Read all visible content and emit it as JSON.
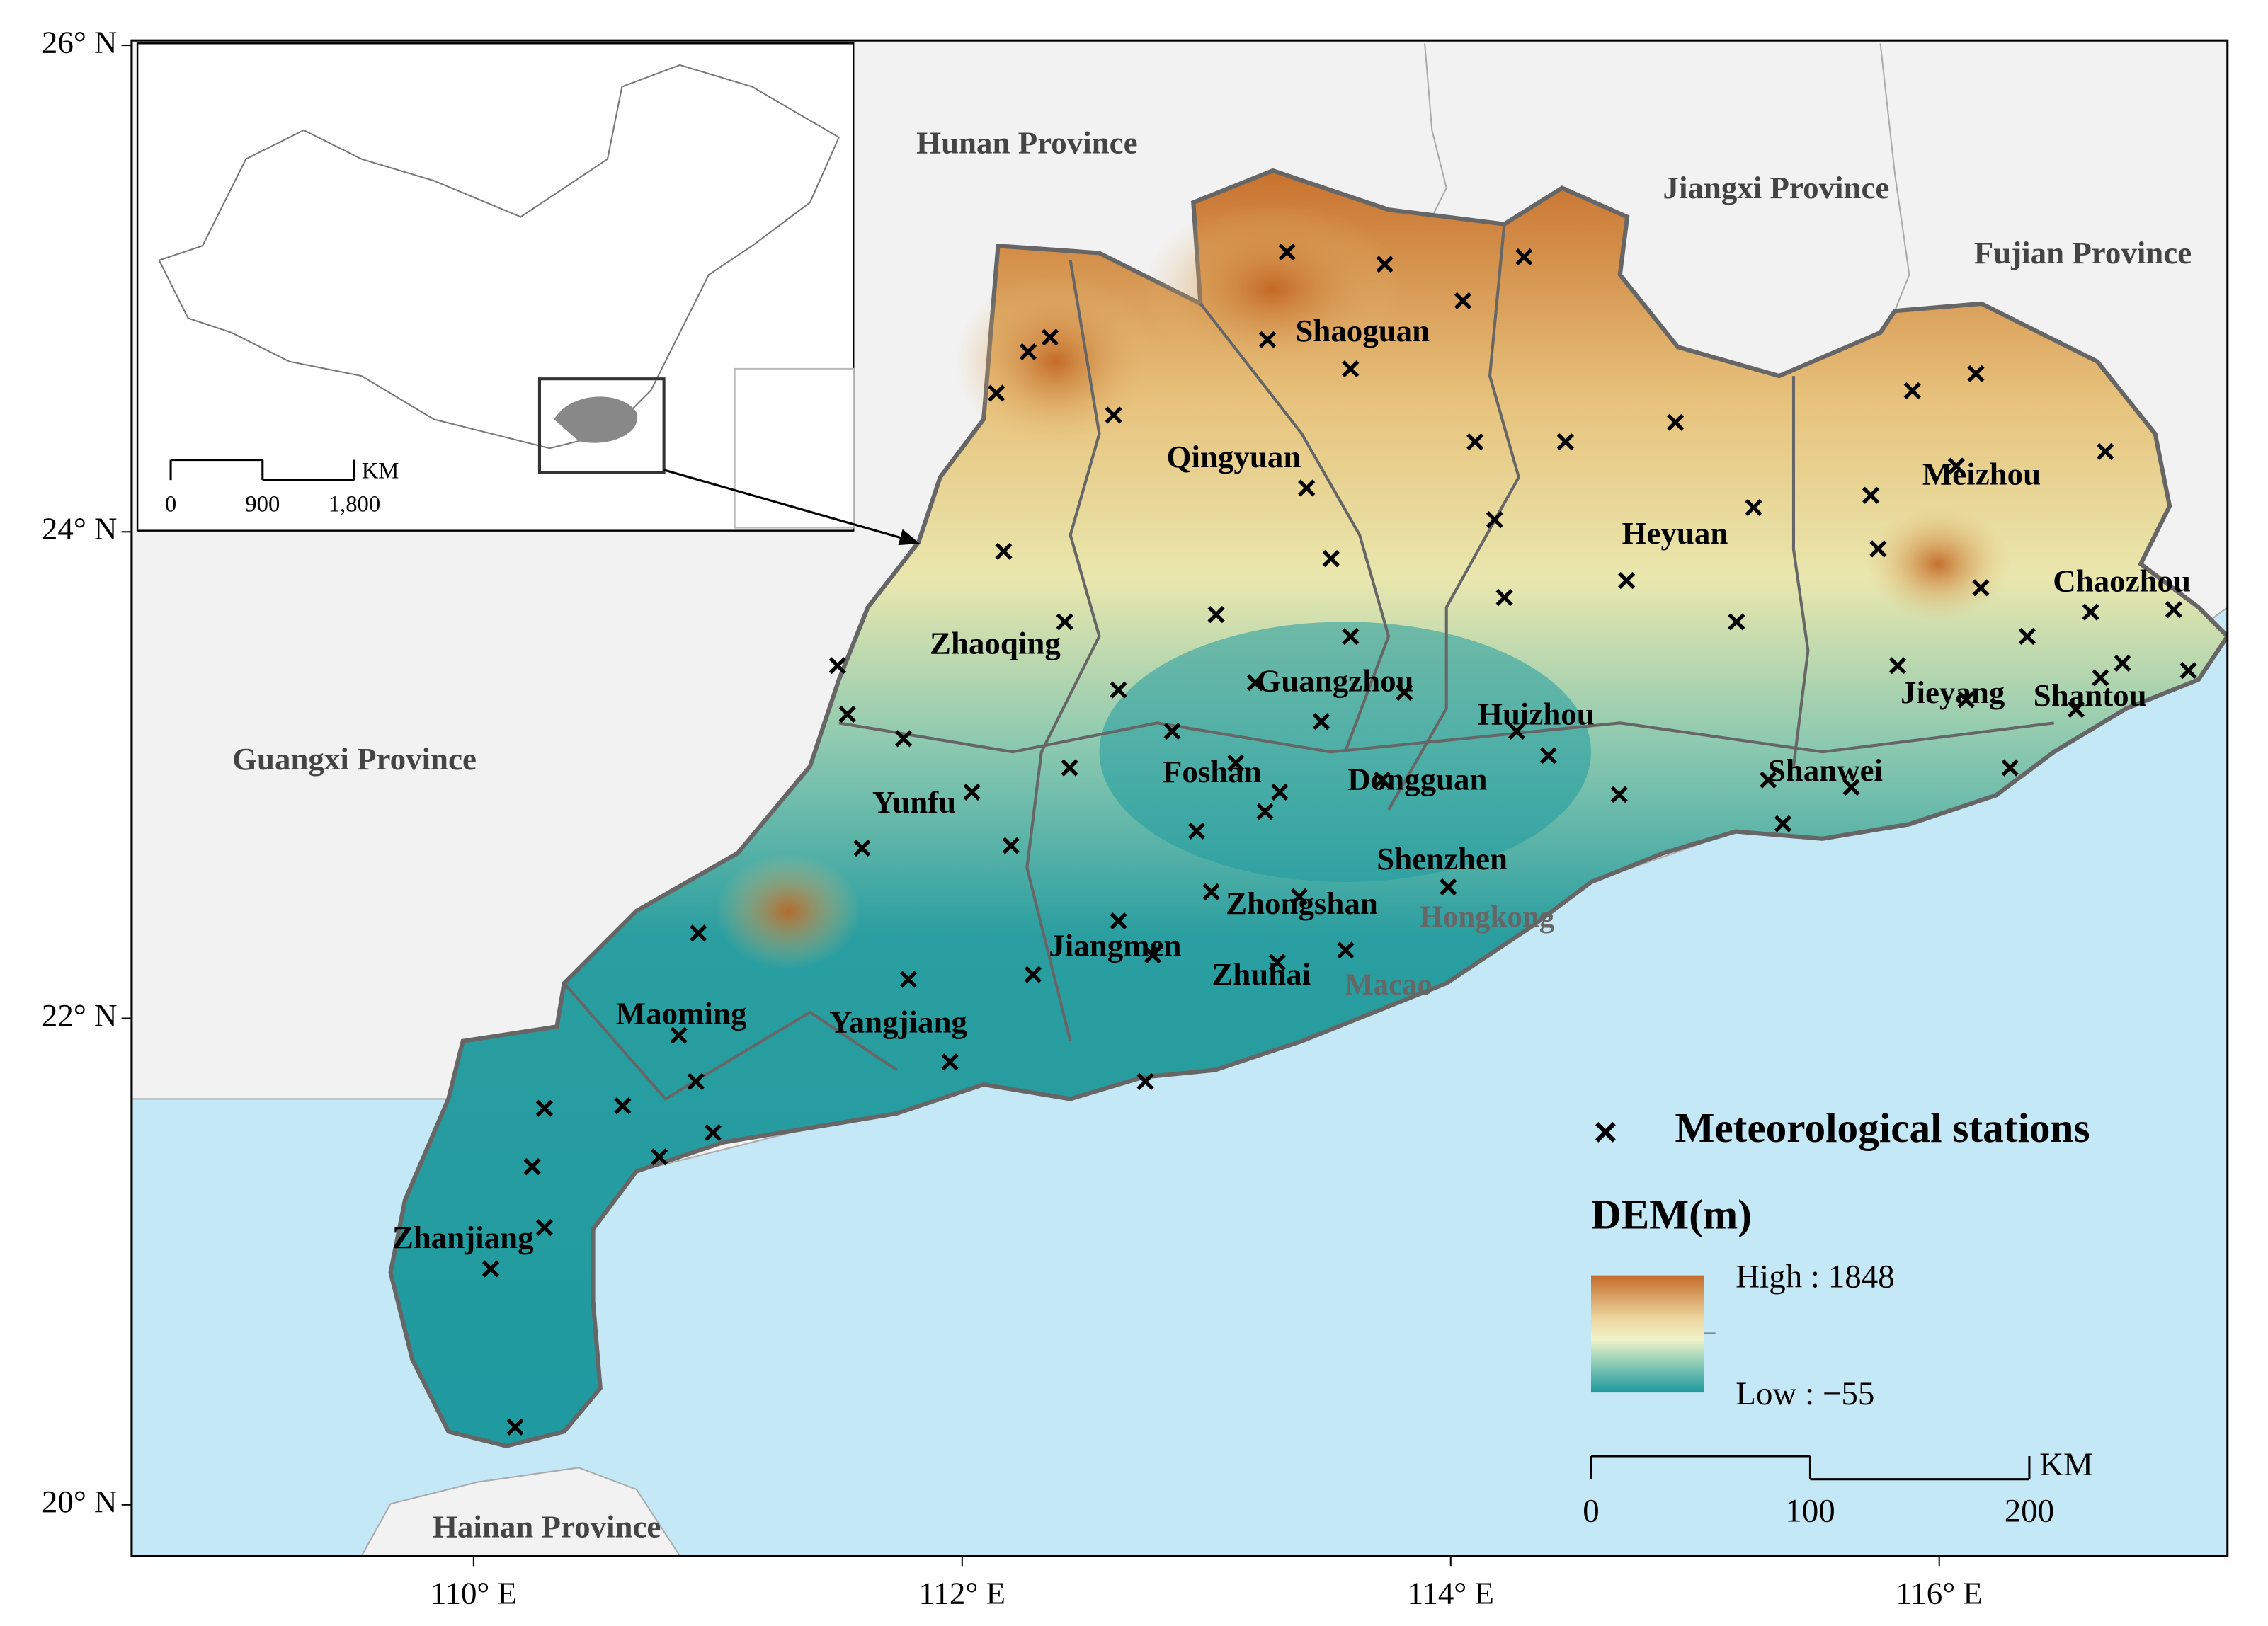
{
  "map": {
    "xlim": [
      108.6,
      117.18
    ],
    "ylim": [
      19.79,
      26.02
    ],
    "xticks": [
      {
        "value": 110,
        "label": "110° E"
      },
      {
        "value": 112,
        "label": "112° E"
      },
      {
        "value": 114,
        "label": "114° E"
      },
      {
        "value": 116,
        "label": "116° E"
      }
    ],
    "yticks": [
      {
        "value": 20,
        "label": "20° N"
      },
      {
        "value": 22,
        "label": "22° N"
      },
      {
        "value": 24,
        "label": "24° N"
      },
      {
        "value": 26,
        "label": "26° N"
      }
    ],
    "stations": {
      "name": "Meteorological stations",
      "color": "#000000",
      "lon": [
        113.33,
        113.73,
        114.3,
        114.05,
        113.25,
        112.36,
        112.27,
        112.14,
        112.62,
        113.59,
        114.1,
        114.47,
        114.92,
        115.89,
        116.15,
        116.68,
        116.07,
        113.41,
        114.18,
        115.24,
        115.72,
        115.75,
        112.17,
        113.51,
        114.72,
        114.22,
        116.17,
        116.62,
        116.96,
        113.04,
        112.42,
        113.59,
        115.17,
        111.49,
        111.53,
        112.64,
        113.2,
        113.81,
        115.83,
        116.75,
        117.02,
        116.66,
        116.11,
        116.56,
        116.36,
        111.76,
        113.47,
        112.86,
        114.27,
        112.44,
        113.12,
        114.4,
        116.29,
        112.04,
        113.3,
        113.72,
        114.69,
        115.3,
        115.64,
        113.24,
        112.96,
        115.36,
        112.2,
        111.59,
        113.02,
        113.38,
        113.99,
        110.92,
        112.64,
        113.57,
        113.29,
        111.78,
        112.29,
        112.78,
        110.84,
        110.91,
        111.95,
        112.75,
        110.29,
        110.61,
        110.98,
        110.76,
        110.24,
        110.29,
        110.07,
        110.17
      ],
      "lat": [
        25.15,
        25.1,
        25.13,
        24.95,
        24.79,
        24.8,
        24.74,
        24.57,
        24.48,
        24.67,
        24.37,
        24.37,
        24.45,
        24.58,
        24.65,
        24.33,
        24.27,
        24.18,
        24.05,
        24.1,
        24.15,
        23.93,
        23.92,
        23.89,
        23.8,
        23.73,
        23.77,
        23.67,
        23.68,
        23.66,
        23.63,
        23.57,
        23.63,
        23.45,
        23.25,
        23.35,
        23.38,
        23.34,
        23.45,
        23.46,
        23.43,
        23.4,
        23.31,
        23.27,
        23.57,
        23.15,
        23.22,
        23.18,
        23.18,
        23.03,
        23.05,
        23.08,
        23.03,
        22.93,
        22.93,
        22.98,
        22.92,
        22.98,
        22.95,
        22.85,
        22.77,
        22.8,
        22.71,
        22.7,
        22.52,
        22.5,
        22.54,
        22.35,
        22.4,
        22.28,
        22.23,
        22.16,
        22.18,
        22.26,
        21.93,
        21.74,
        21.82,
        21.74,
        21.63,
        21.64,
        21.53,
        21.43,
        21.39,
        21.14,
        20.97,
        20.32
      ]
    },
    "dem": {
      "title": "DEM(m)",
      "high": {
        "value": 1848,
        "label": "High : 1848"
      },
      "low": {
        "value": -55,
        "label": "Low : −55"
      }
    },
    "scale_bar": {
      "ticks": [
        0,
        100,
        200
      ],
      "unit": "KM"
    },
    "inset": {
      "scale_bar": {
        "ticks": [
          0,
          900,
          {
            "value": 1800,
            "label": "1,800"
          }
        ],
        "unit": "KM"
      }
    },
    "cities": [
      "Shaoguan",
      "Qingyuan",
      "Heyuan",
      "Meizhou",
      "Chaozhou",
      "Zhaoqing",
      "Guangzhou",
      "Huizhou",
      "Jieyang",
      "Shantou",
      "Foshan",
      "Dongguan",
      "Shanwei",
      "Yunfu",
      "Shenzhen",
      "Zhongshan",
      "Jiangmen",
      "Zhuhai",
      "Yangjiang",
      "Maoming",
      "Zhanjiang"
    ],
    "special_regions": [
      "Hongkong",
      "Macao"
    ],
    "provinces": [
      "Hunan Province",
      "Jiangxi Province",
      "Fujian Province",
      "Guangxi Province",
      "Hainan Province"
    ]
  }
}
